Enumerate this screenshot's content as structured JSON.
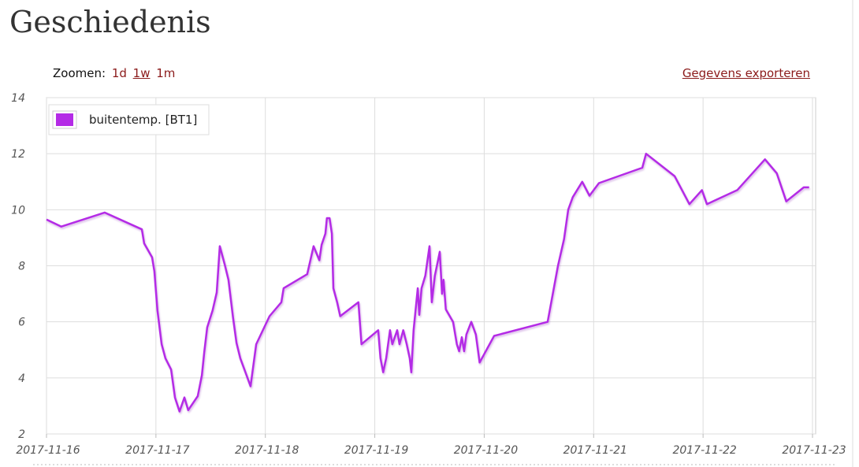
{
  "header": {
    "title": "Geschiedenis"
  },
  "toolbar": {
    "zoom_label": "Zoomen:",
    "zoom_options": [
      "1d",
      "1w",
      "1m"
    ],
    "export": "Gegevens exporteren"
  },
  "chart_data": {
    "type": "line",
    "x": [
      "2017-11-16 00:00",
      "2017-11-16 03:15",
      "2017-11-16 12:45",
      "2017-11-16 20:55",
      "2017-11-16 21:25",
      "2017-11-16 23:10",
      "2017-11-16 23:40",
      "2017-11-17 00:20",
      "2017-11-17 01:15",
      "2017-11-17 02:05",
      "2017-11-17 03:20",
      "2017-11-17 04:10",
      "2017-11-17 05:10",
      "2017-11-17 06:15",
      "2017-11-17 07:05",
      "2017-11-17 09:10",
      "2017-11-17 10:05",
      "2017-11-17 10:35",
      "2017-11-17 11:15",
      "2017-11-17 12:25",
      "2017-11-17 13:20",
      "2017-11-17 14:00",
      "2017-11-17 15:05",
      "2017-11-17 15:55",
      "2017-11-17 16:55",
      "2017-11-17 17:40",
      "2017-11-17 18:30",
      "2017-11-17 19:45",
      "2017-11-17 20:45",
      "2017-11-17 22:00",
      "2017-11-18 00:55",
      "2017-11-18 03:30",
      "2017-11-18 04:00",
      "2017-11-18 09:10",
      "2017-11-18 10:35",
      "2017-11-18 11:50",
      "2017-11-18 12:20",
      "2017-11-18 13:10",
      "2017-11-18 13:30",
      "2017-11-18 14:05",
      "2017-11-18 14:35",
      "2017-11-18 14:55",
      "2017-11-18 15:45",
      "2017-11-18 16:25",
      "2017-11-18 20:25",
      "2017-11-18 21:05",
      "2017-11-19 00:45",
      "2017-11-19 01:15",
      "2017-11-19 01:50",
      "2017-11-19 02:30",
      "2017-11-19 03:20",
      "2017-11-19 03:50",
      "2017-11-19 04:55",
      "2017-11-19 05:25",
      "2017-11-19 06:15",
      "2017-11-19 07:00",
      "2017-11-19 07:40",
      "2017-11-19 08:00",
      "2017-11-19 08:30",
      "2017-11-19 09:25",
      "2017-11-19 09:45",
      "2017-11-19 10:15",
      "2017-11-19 11:05",
      "2017-11-19 12:00",
      "2017-11-19 12:30",
      "2017-11-19 13:10",
      "2017-11-19 14:15",
      "2017-11-19 14:45",
      "2017-11-19 15:05",
      "2017-11-19 15:35",
      "2017-11-19 17:10",
      "2017-11-19 18:00",
      "2017-11-19 18:30",
      "2017-11-19 19:05",
      "2017-11-19 19:35",
      "2017-11-19 20:05",
      "2017-11-19 21:10",
      "2017-11-19 22:10",
      "2017-11-19 23:00",
      "2017-11-20 02:10",
      "2017-11-20 13:55",
      "2017-11-20 16:10",
      "2017-11-20 17:30",
      "2017-11-20 18:25",
      "2017-11-20 19:25",
      "2017-11-20 21:30",
      "2017-11-20 23:05",
      "2017-11-21 01:10",
      "2017-11-21 10:40",
      "2017-11-21 11:30",
      "2017-11-21 17:45",
      "2017-11-21 21:00",
      "2017-11-21 23:45",
      "2017-11-22 00:50",
      "2017-11-22 07:30",
      "2017-11-22 13:35",
      "2017-11-22 16:10",
      "2017-11-22 18:15",
      "2017-11-22 22:05",
      "2017-11-22 23:15"
    ],
    "series": [
      {
        "name": "buitentemp. [BT1]",
        "color": "#b42be6",
        "values": [
          9.65,
          9.4,
          9.9,
          9.3,
          8.8,
          8.3,
          7.8,
          6.4,
          5.2,
          4.7,
          4.3,
          3.3,
          2.8,
          3.3,
          2.85,
          3.35,
          4.1,
          4.9,
          5.8,
          6.4,
          7.05,
          8.7,
          8.05,
          7.5,
          6.15,
          5.25,
          4.7,
          4.15,
          3.7,
          5.2,
          6.2,
          6.7,
          7.2,
          7.7,
          8.7,
          8.2,
          8.75,
          9.15,
          9.7,
          9.7,
          9.15,
          7.2,
          6.7,
          6.2,
          6.7,
          5.2,
          5.7,
          4.7,
          4.2,
          4.7,
          5.7,
          5.2,
          5.7,
          5.2,
          5.7,
          5.2,
          4.7,
          4.2,
          5.7,
          7.2,
          6.25,
          7.2,
          7.65,
          8.7,
          6.7,
          7.65,
          8.5,
          7.0,
          7.5,
          6.45,
          6.0,
          5.2,
          4.95,
          5.45,
          4.95,
          5.55,
          6.0,
          5.55,
          4.55,
          5.5,
          6.0,
          8.0,
          8.95,
          10.0,
          10.45,
          11.0,
          10.5,
          10.95,
          11.5,
          12.0,
          11.2,
          10.2,
          10.7,
          10.2,
          10.7,
          11.8,
          11.3,
          10.3,
          10.8,
          10.8
        ]
      }
    ],
    "xlim": [
      "2017-11-16",
      "2017-11-23"
    ],
    "xticks": [
      "2017-11-16",
      "2017-11-17",
      "2017-11-18",
      "2017-11-19",
      "2017-11-20",
      "2017-11-21",
      "2017-11-22",
      "2017-11-23"
    ],
    "ylim": [
      2,
      14
    ],
    "yticks": [
      2,
      4,
      6,
      8,
      10,
      12,
      14
    ],
    "grid": true,
    "legend": "top-left"
  }
}
